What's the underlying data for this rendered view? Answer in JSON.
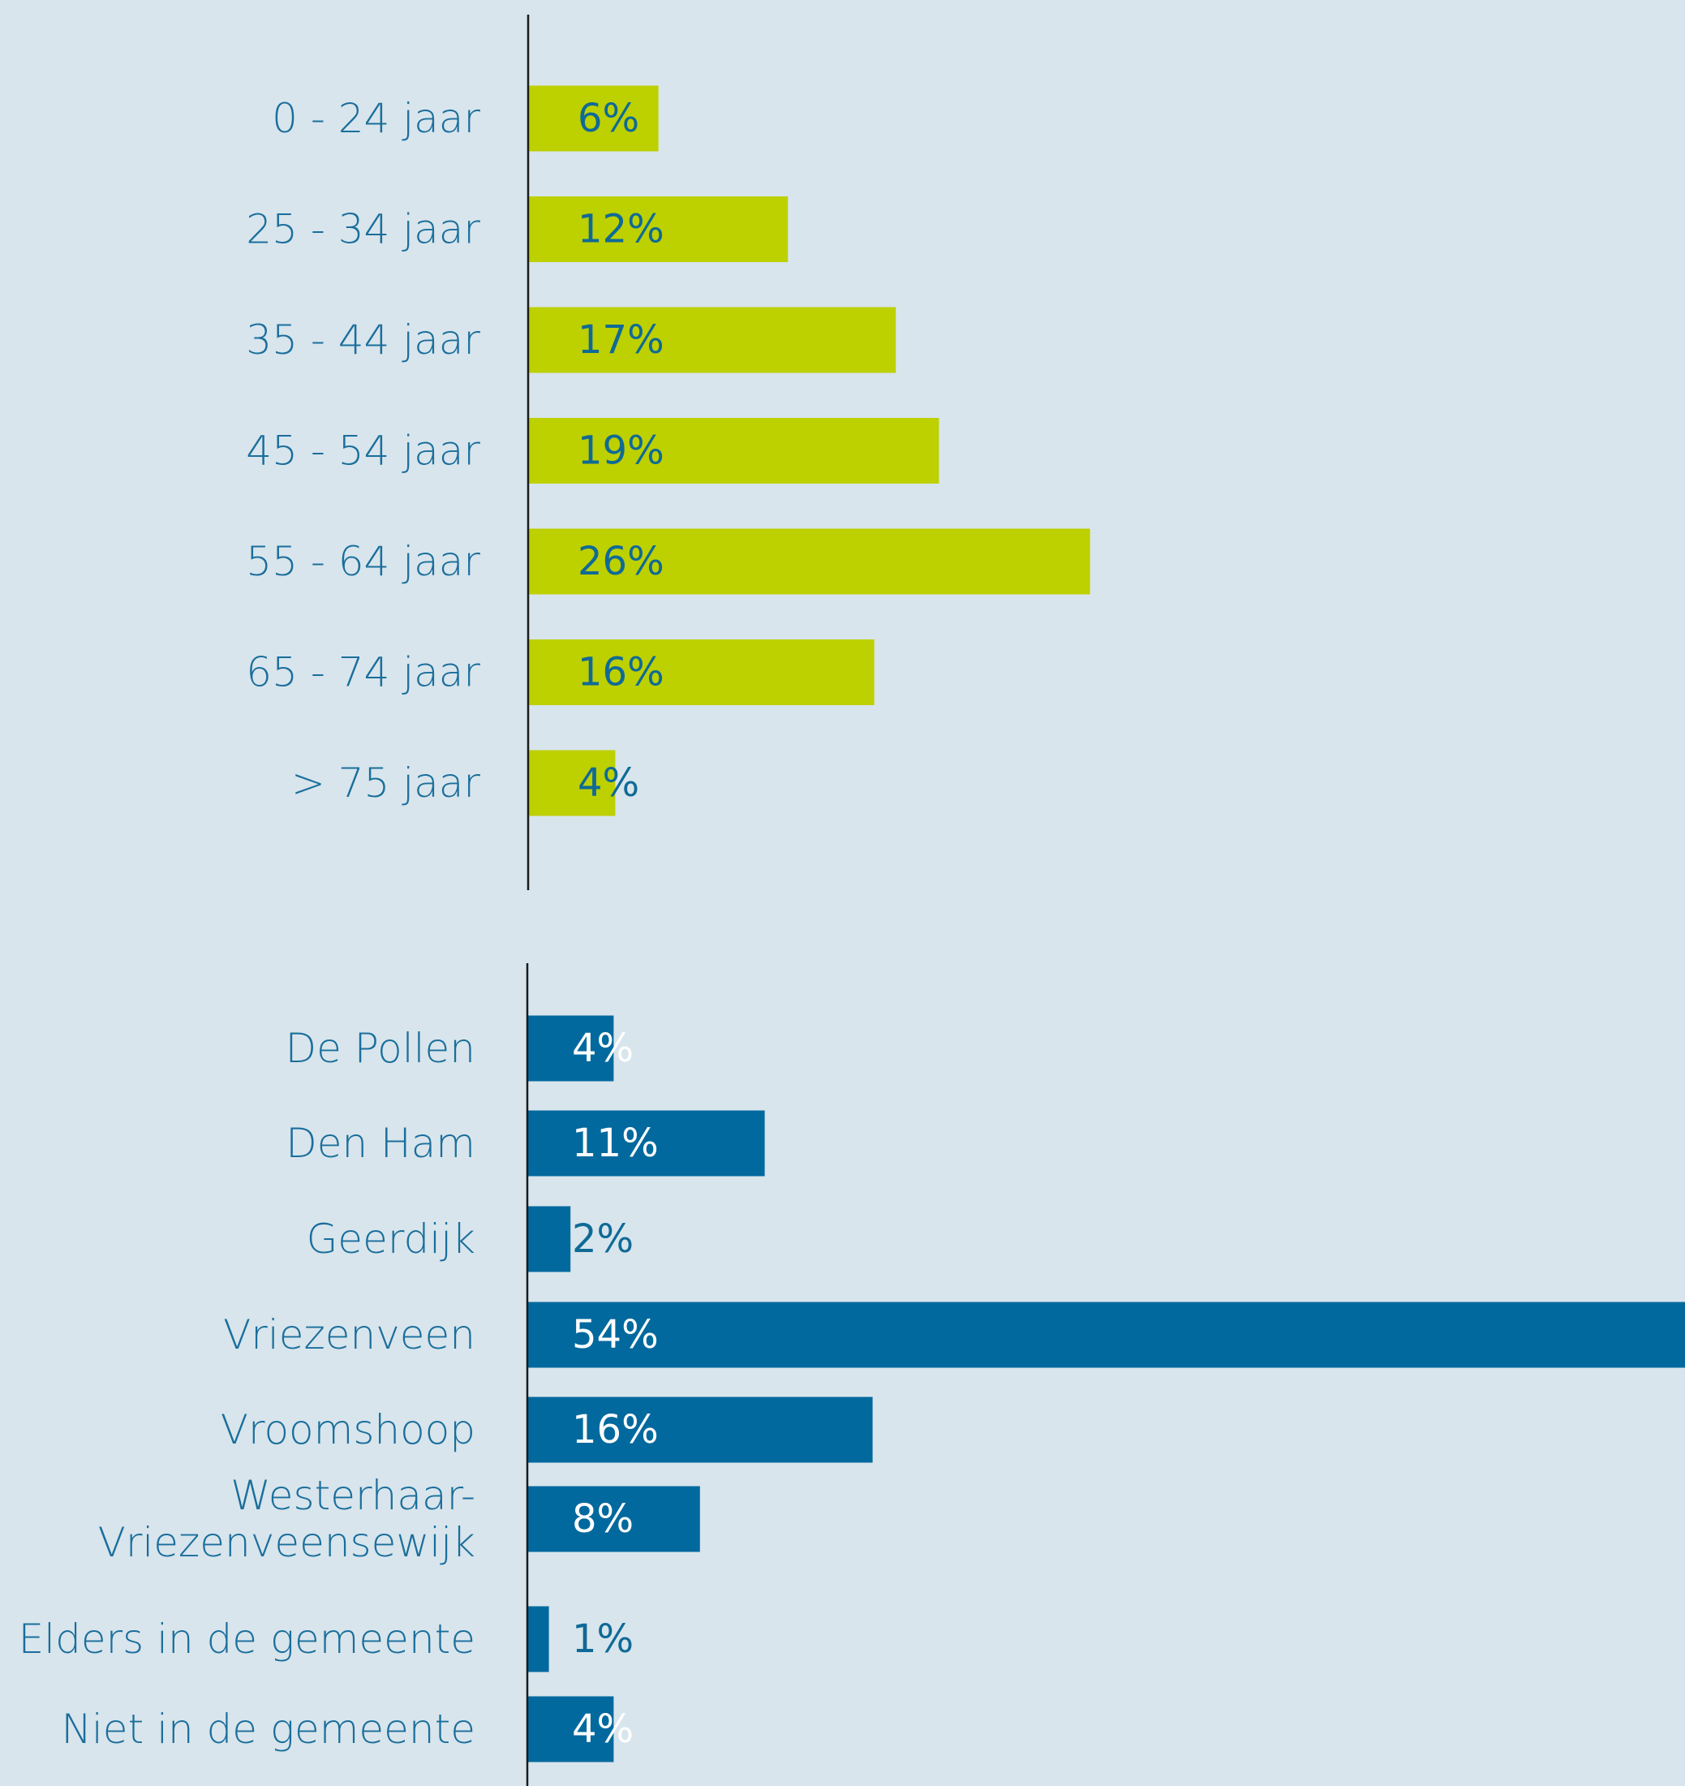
{
  "chart_data": [
    {
      "type": "bar",
      "orientation": "horizontal",
      "categories": [
        "0 - 24 jaar",
        "25 - 34 jaar",
        "35 - 44 jaar",
        "45 - 54 jaar",
        "55 - 64 jaar",
        "65 - 74 jaar",
        "> 75 jaar"
      ],
      "values": [
        6,
        12,
        17,
        19,
        26,
        16,
        4
      ],
      "value_labels": [
        "6%",
        "12%",
        "17%",
        "19%",
        "26%",
        "16%",
        "4%"
      ],
      "unit": "%",
      "xlim": [
        0,
        54
      ],
      "grid": false,
      "legend": "none",
      "colors": {
        "bar": "#bdd000",
        "value_text": "#0f6a96",
        "category_text": "#1a6e9c",
        "axis": "#1b1b1b"
      }
    },
    {
      "type": "bar",
      "orientation": "horizontal",
      "categories": [
        "De Pollen",
        "Den Ham",
        "Geerdijk",
        "Vriezenveen",
        "Vroomshoop",
        "Westerhaar-Vriezenveensewijk",
        "Elders in de  gemeente",
        "Niet in de gemeente"
      ],
      "category_lines": [
        [
          "De Pollen"
        ],
        [
          "Den Ham"
        ],
        [
          "Geerdijk"
        ],
        [
          "Vriezenveen"
        ],
        [
          "Vroomshoop"
        ],
        [
          "Westerhaar-",
          "Vriezenveensewijk"
        ],
        [
          "Elders in de  gemeente"
        ],
        [
          "Niet in de gemeente"
        ]
      ],
      "values": [
        4,
        11,
        2,
        54,
        16,
        8,
        1,
        4
      ],
      "value_labels": [
        "4%",
        "11%",
        "2%",
        "54%",
        "16%",
        "8%",
        "1%",
        "4%"
      ],
      "unit": "%",
      "xlim": [
        0,
        54
      ],
      "grid": false,
      "legend": "none",
      "colors": {
        "bar": "#02699e",
        "value_text_inside": "#ffffff",
        "value_text_outside": "#0f6a96",
        "category_text": "#1a6e9c",
        "axis": "#1b1b1b"
      }
    }
  ]
}
